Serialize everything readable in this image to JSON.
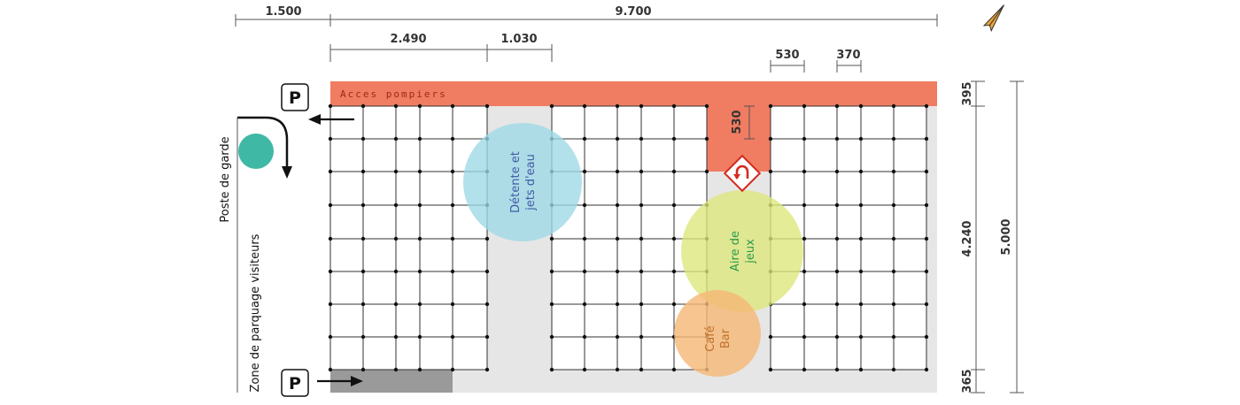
{
  "dimensions": {
    "top": [
      "1.500",
      "9.700"
    ],
    "second": [
      "2.490",
      "1.030"
    ],
    "parking_widths": [
      "530",
      "370"
    ],
    "right_segments": [
      "395",
      "4.240",
      "365"
    ],
    "total_height": "5.000",
    "notch_depth": "530"
  },
  "labels": {
    "acces_pompiers": "Acces pompiers",
    "poste_de_garde": "Poste de garde",
    "zone_parquage": "Zone de parquage visiteurs",
    "parking_sign": "P"
  },
  "zones": {
    "detente": [
      "Détente et",
      "jets d'eau"
    ],
    "aire": [
      "Aire de",
      "jeux"
    ],
    "cafe": [
      "Café",
      "Bar"
    ]
  },
  "colors": {
    "pompiers": "#f07c62",
    "detente": "#9ed8e6",
    "aire": "#dce77a",
    "cafe": "#f5b877",
    "guard_post": "#3fb8a6",
    "paving": "#e6e6e6",
    "visitor_parking": "#9a9a9a",
    "u_turn_sign": "#d42a20"
  },
  "icons": {
    "compass": "north-arrow-icon",
    "u_turn": "u-turn-sign-icon",
    "parking": "parking-sign-icon",
    "arrow": "arrow-icon"
  }
}
